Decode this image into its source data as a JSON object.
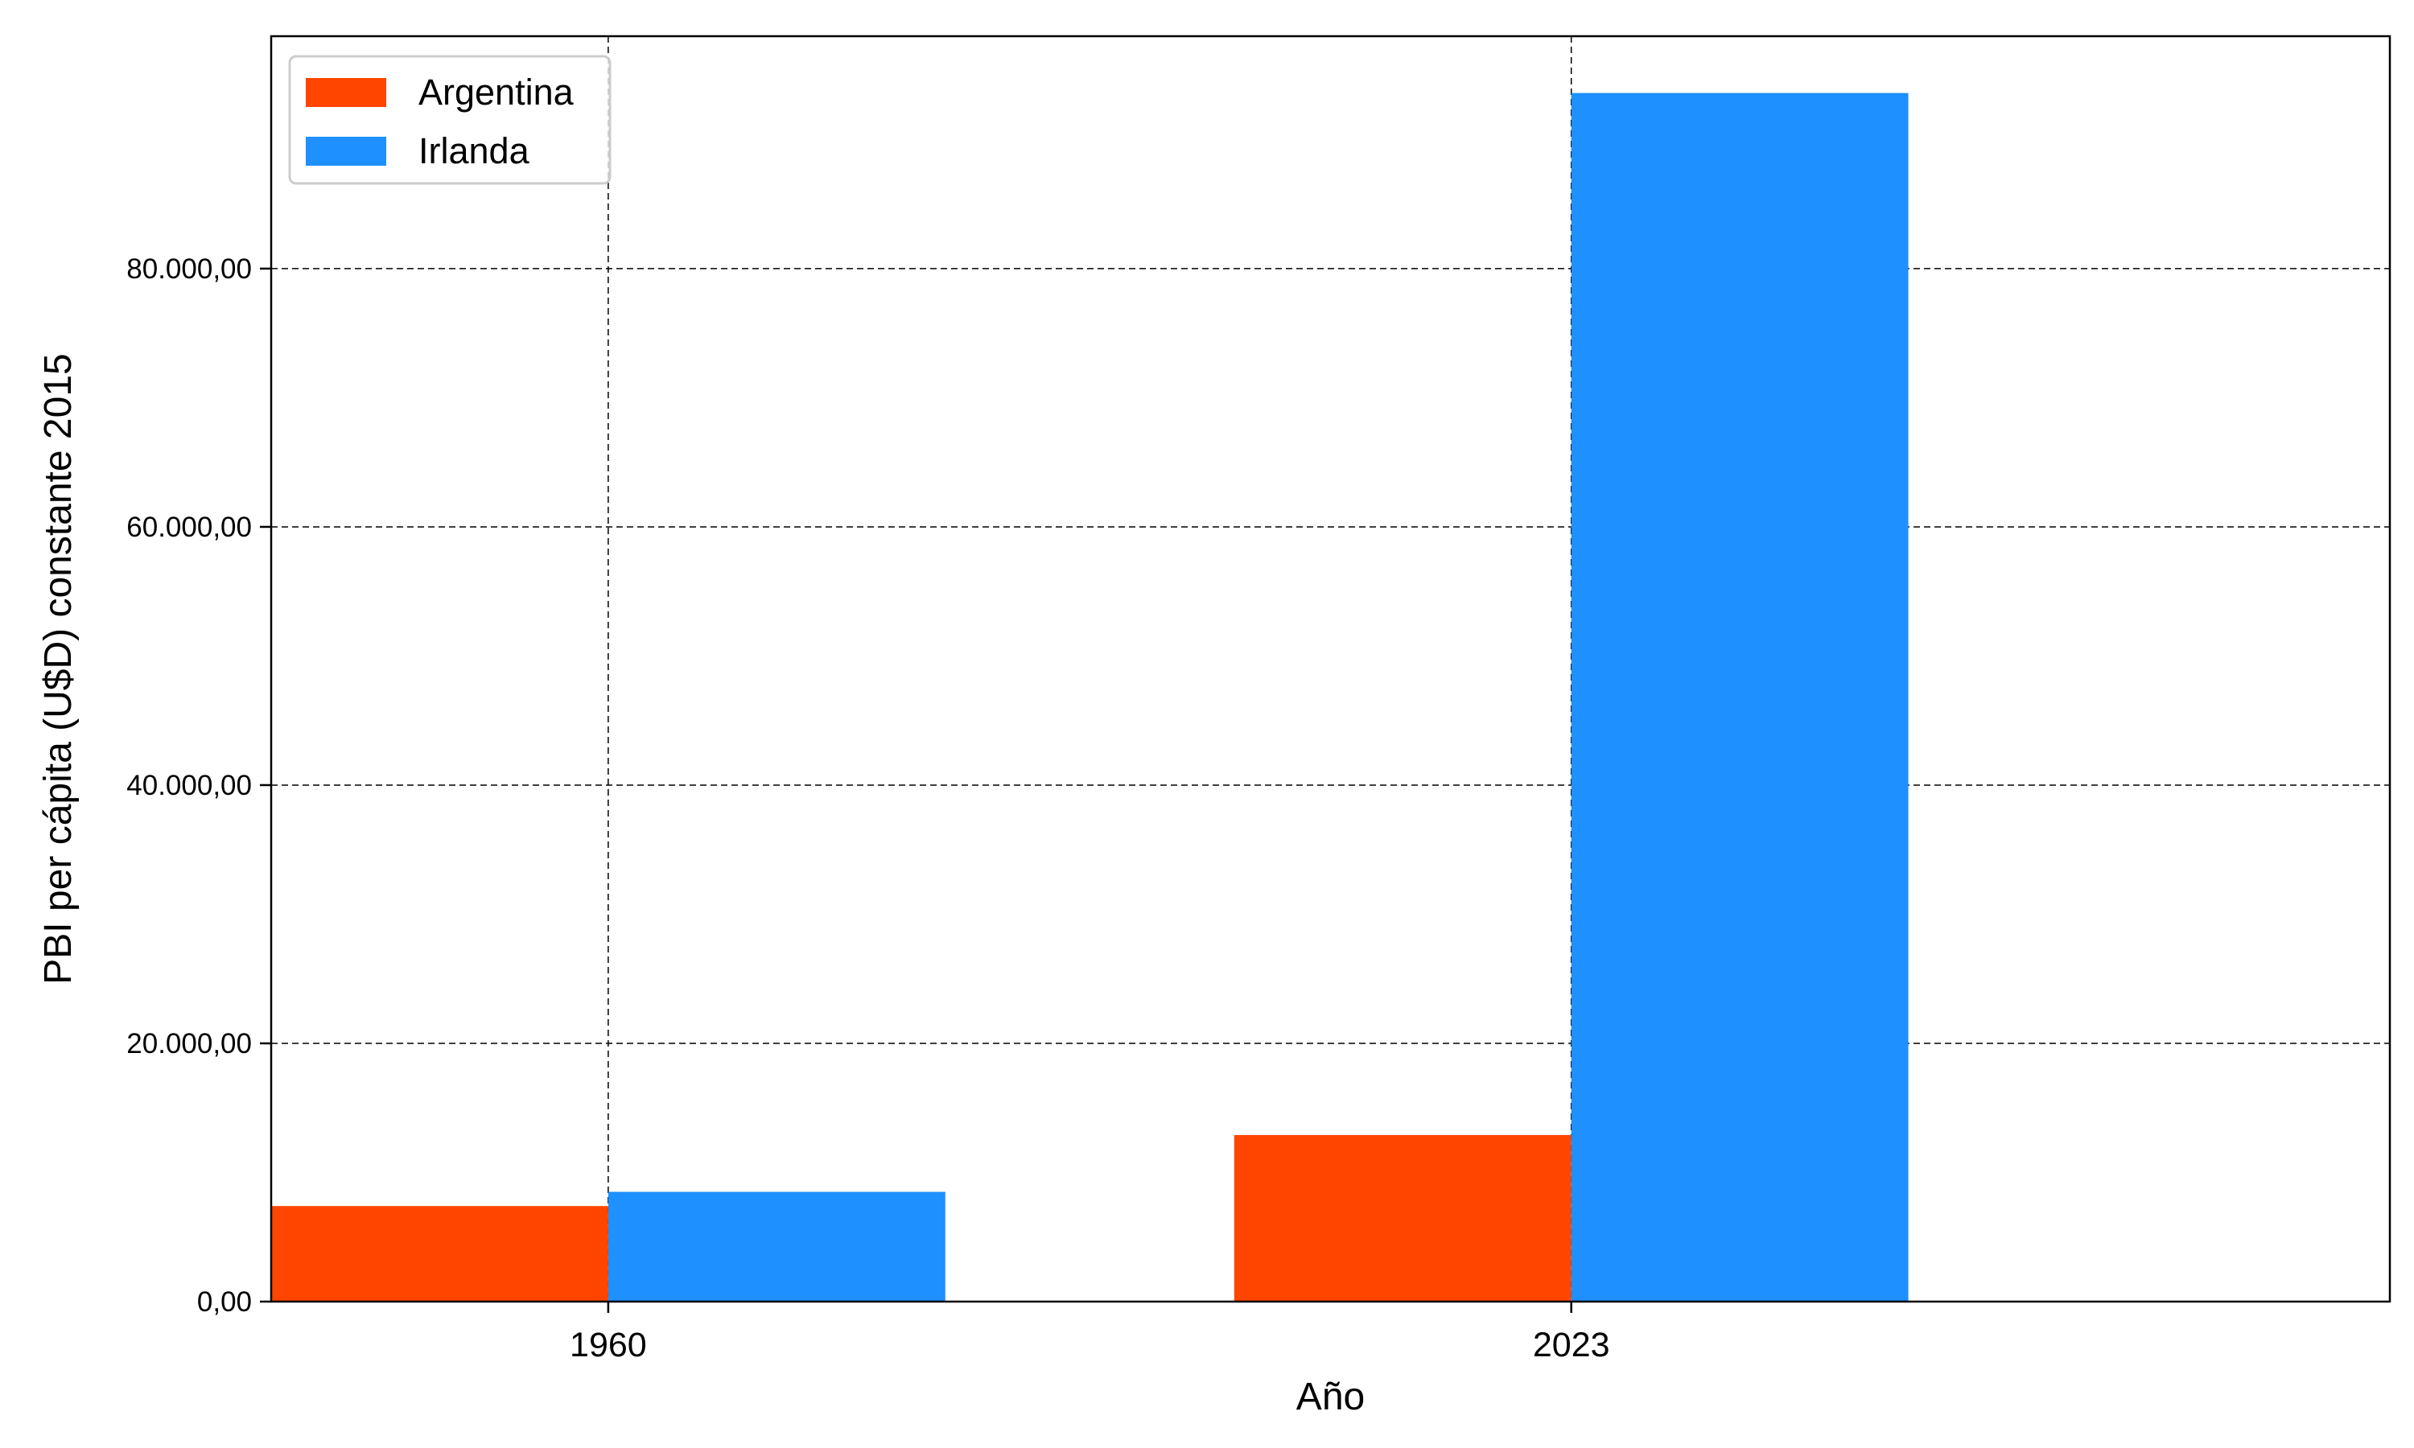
{
  "chart_data": {
    "type": "bar",
    "title": "",
    "xlabel": "Año",
    "ylabel": "PBI per cápita (U$D) constante 2015",
    "categories": [
      "1960",
      "2023"
    ],
    "series": [
      {
        "name": "Argentina",
        "color": "#FF4500",
        "values": [
          7400,
          12900
        ]
      },
      {
        "name": "Irlanda",
        "color": "#1E90FF",
        "values": [
          8500,
          93600
        ]
      }
    ],
    "ylim": [
      0,
      98000
    ],
    "yticks": [
      0,
      20000,
      40000,
      60000,
      80000
    ],
    "ytick_labels": [
      "0,00",
      "20.000,00",
      "40.000,00",
      "60.000,00",
      "80.000,00"
    ],
    "grid": true,
    "legend_position": "top-left"
  }
}
